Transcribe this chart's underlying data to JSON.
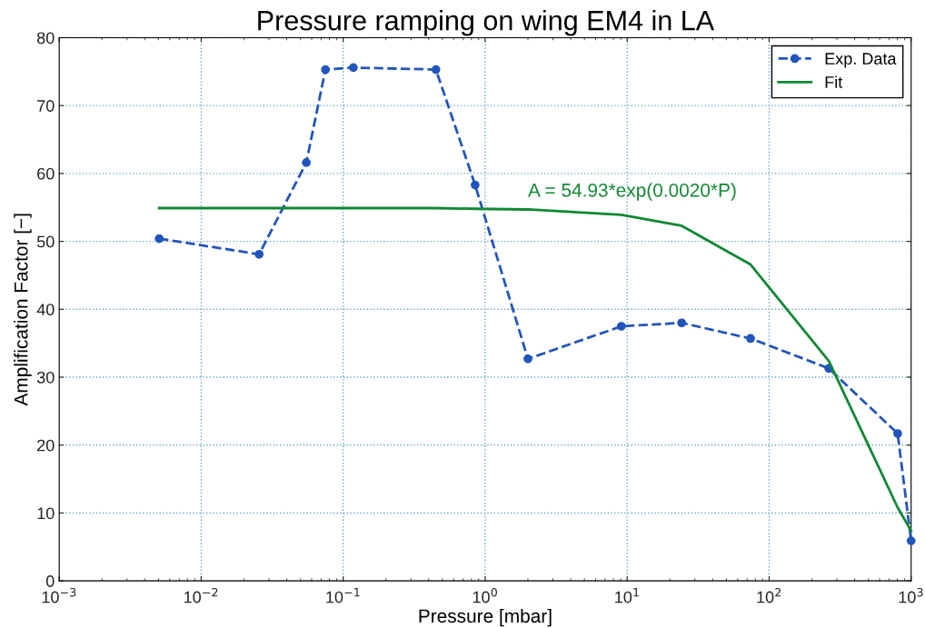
{
  "chart_data": {
    "type": "line",
    "title": "Pressure ramping on wing EM4 in LA",
    "xlabel": "Pressure [mbar]",
    "ylabel": "Amplification Factor [−]",
    "log": "x",
    "grid": true,
    "legend": "top right",
    "xlim": [
      0.001,
      1000
    ],
    "ylim": [
      0,
      80
    ],
    "xticks": [
      {
        "value": 0.001,
        "label": "10$^{−3}$"
      },
      {
        "value": 0.01,
        "label": "10$^{−2}$"
      },
      {
        "value": 0.1,
        "label": "10$^{−1}$"
      },
      {
        "value": 1,
        "label": "10$^{0}$"
      },
      {
        "value": 10,
        "label": "10$^{1}$"
      },
      {
        "value": 100,
        "label": "10$^{2}$"
      },
      {
        "value": 1000,
        "label": "10$^{3}$"
      }
    ],
    "yticks": [
      0,
      10,
      20,
      30,
      40,
      50,
      60,
      70,
      80
    ],
    "annotations": [
      {
        "text": "A = 54.93*exp(0.0020*P)",
        "x": 2.0,
        "y": 54.7
      }
    ],
    "series": [
      {
        "name": "Exp. Data",
        "color": "#2255bb",
        "marker": "circle",
        "line_style": "dashed",
        "x": [
          0.00506,
          0.0256,
          0.055,
          0.075,
          0.118,
          0.45,
          0.85,
          2.0,
          9.1,
          24.2,
          74,
          263,
          804,
          1000
        ],
        "values": [
          50.4,
          48.1,
          61.6,
          75.3,
          75.6,
          75.3,
          58.3,
          32.7,
          37.5,
          38.0,
          35.7,
          31.3,
          21.7,
          5.9
        ]
      },
      {
        "name": "Fit",
        "color": "#118833",
        "marker": "none",
        "line_style": "solid",
        "x": [
          0.00506,
          0.0256,
          0.055,
          0.075,
          0.118,
          0.45,
          0.85,
          2.0,
          9.1,
          24.2,
          74,
          263,
          804,
          1000
        ],
        "values": [
          54.9,
          54.9,
          54.9,
          54.9,
          54.9,
          54.9,
          54.8,
          54.7,
          53.9,
          52.3,
          46.6,
          32.4,
          10.8,
          7.4
        ]
      }
    ]
  }
}
